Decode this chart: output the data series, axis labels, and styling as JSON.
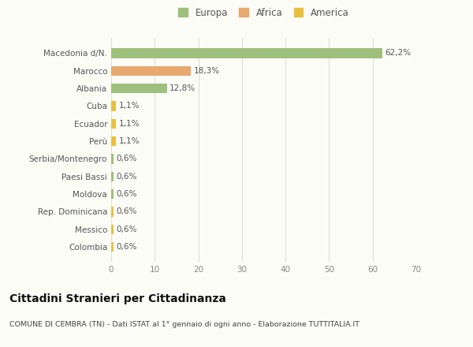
{
  "categories": [
    "Colombia",
    "Messico",
    "Rep. Dominicana",
    "Moldova",
    "Paesi Bassi",
    "Serbia/Montenegro",
    "Perù",
    "Ecuador",
    "Cuba",
    "Albania",
    "Marocco",
    "Macedonia d/N."
  ],
  "values": [
    0.6,
    0.6,
    0.6,
    0.6,
    0.6,
    0.6,
    1.1,
    1.1,
    1.1,
    12.8,
    18.3,
    62.2
  ],
  "labels": [
    "0,6%",
    "0,6%",
    "0,6%",
    "0,6%",
    "0,6%",
    "0,6%",
    "1,1%",
    "1,1%",
    "1,1%",
    "12,8%",
    "18,3%",
    "62,2%"
  ],
  "colors": [
    "#e8c040",
    "#e8c040",
    "#e8c040",
    "#9ec07c",
    "#9ec07c",
    "#9ec07c",
    "#e8c040",
    "#e8c040",
    "#e8c040",
    "#9ec07c",
    "#e8a870",
    "#9ec07c"
  ],
  "legend": [
    {
      "label": "Europa",
      "color": "#9ec07c"
    },
    {
      "label": "Africa",
      "color": "#e8a870"
    },
    {
      "label": "America",
      "color": "#e8c040"
    }
  ],
  "title": "Cittadini Stranieri per Cittadinanza",
  "subtitle": "COMUNE DI CEMBRA (TN) - Dati ISTAT al 1° gennaio di ogni anno - Elaborazione TUTTITALIA.IT",
  "xlim": [
    0,
    70
  ],
  "xticks": [
    0,
    10,
    20,
    30,
    40,
    50,
    60,
    70
  ],
  "background_color": "#fcfcf7",
  "grid_color": "#e0e0d0"
}
